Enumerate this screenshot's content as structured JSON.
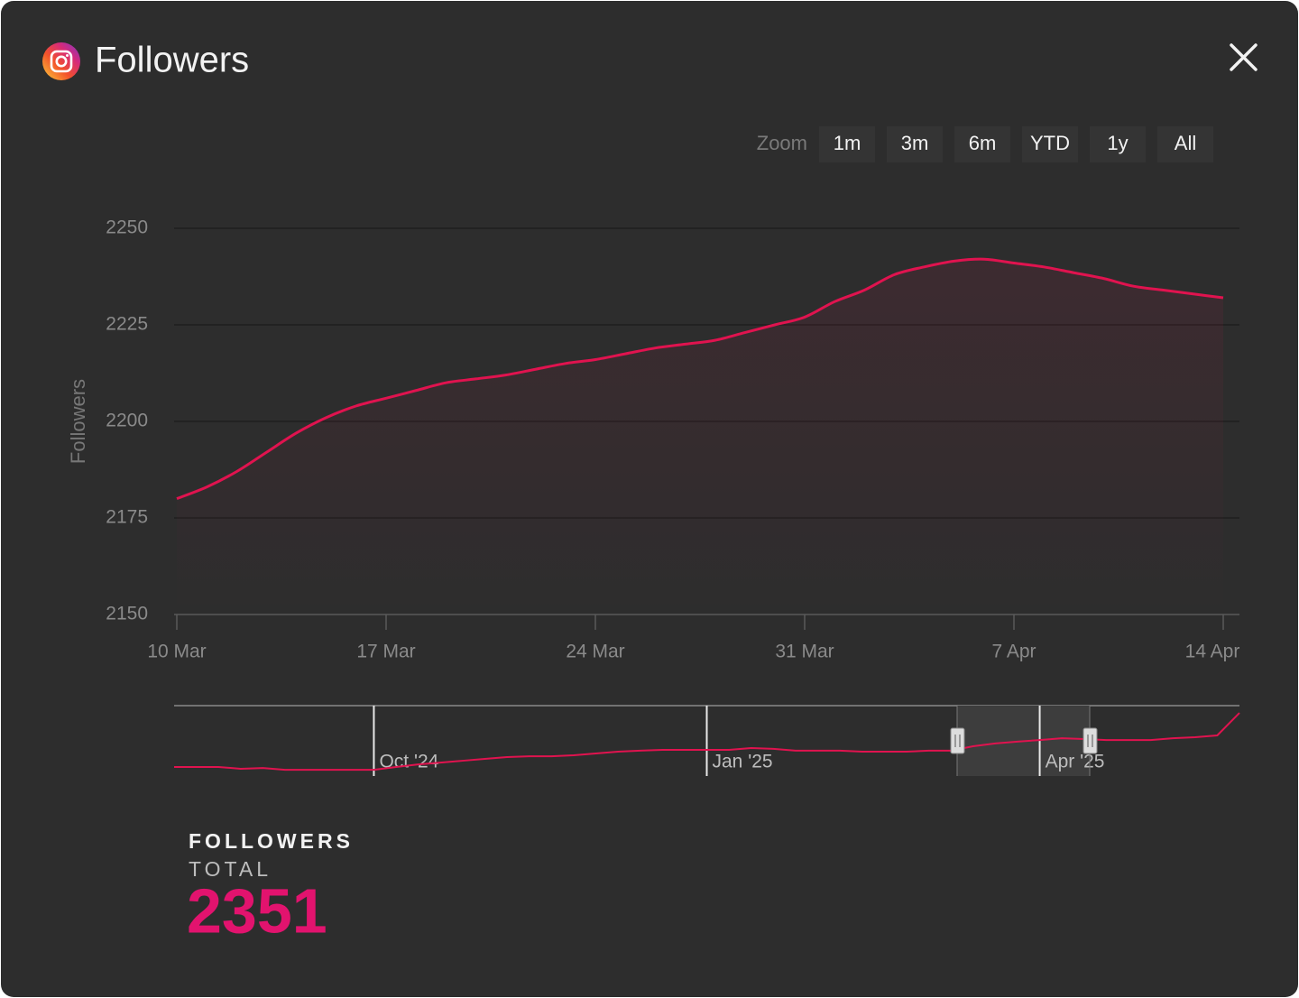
{
  "header": {
    "title": "Followers"
  },
  "zoom": {
    "label": "Zoom",
    "buttons": [
      "1m",
      "3m",
      "6m",
      "YTD",
      "1y",
      "All"
    ]
  },
  "chart_data": {
    "type": "area",
    "y_label": "Followers",
    "x": [
      "10 Mar",
      "11 Mar",
      "12 Mar",
      "13 Mar",
      "14 Mar",
      "15 Mar",
      "16 Mar",
      "17 Mar",
      "18 Mar",
      "19 Mar",
      "20 Mar",
      "21 Mar",
      "22 Mar",
      "23 Mar",
      "24 Mar",
      "25 Mar",
      "26 Mar",
      "27 Mar",
      "28 Mar",
      "29 Mar",
      "30 Mar",
      "31 Mar",
      "1 Apr",
      "2 Apr",
      "3 Apr",
      "4 Apr",
      "5 Apr",
      "6 Apr",
      "7 Apr",
      "8 Apr",
      "9 Apr",
      "10 Apr",
      "11 Apr",
      "12 Apr",
      "13 Apr",
      "14 Apr"
    ],
    "xticks": [
      "10 Mar",
      "17 Mar",
      "24 Mar",
      "31 Mar",
      "7 Apr",
      "14 Apr"
    ],
    "series": [
      {
        "color": "#e0134f",
        "values": [
          2180,
          2183,
          2187,
          2192,
          2197,
          2201,
          2204,
          2206,
          2208,
          2210,
          2211,
          2212,
          2213.5,
          2215,
          2216,
          2217.5,
          2219,
          2220,
          2221,
          2223,
          2225,
          2227,
          2231,
          2234,
          2238,
          2240,
          2241.5,
          2242,
          2241,
          2240,
          2238.5,
          2237,
          2235,
          2234,
          2233,
          2232
        ]
      }
    ],
    "ylim": [
      2150,
      2250
    ],
    "yticks": [
      2150,
      2175,
      2200,
      2225,
      2250
    ],
    "grid": true
  },
  "navigator": {
    "color": "#e0134f",
    "ylim": [
      2050,
      2400
    ],
    "categories": [
      null,
      null,
      null,
      null,
      null,
      null,
      null,
      null,
      null,
      "Oct '24",
      null,
      null,
      null,
      null,
      null,
      null,
      null,
      null,
      null,
      null,
      null,
      null,
      null,
      null,
      "Jan '25",
      null,
      null,
      null,
      null,
      null,
      null,
      null,
      null,
      null,
      null,
      null,
      null,
      null,
      null,
      "Apr '25",
      null,
      null,
      null,
      null,
      null,
      null,
      null,
      null,
      null
    ],
    "values": [
      2095,
      2095,
      2095,
      2086,
      2090,
      2081,
      2081,
      2081,
      2081,
      2081,
      2095,
      2108,
      2117,
      2126,
      2135,
      2144,
      2148,
      2148,
      2153,
      2162,
      2171,
      2176,
      2180,
      2180,
      2180,
      2180,
      2189,
      2185,
      2176,
      2176,
      2176,
      2171,
      2171,
      2171,
      2176,
      2176,
      2198,
      2212,
      2221,
      2229,
      2238,
      2234,
      2229,
      2229,
      2229,
      2238,
      2243,
      2252,
      2364
    ]
  },
  "summary": {
    "title": "FOLLOWERS",
    "subtitle": "TOTAL",
    "value": 2351,
    "color": "#e2136e"
  }
}
